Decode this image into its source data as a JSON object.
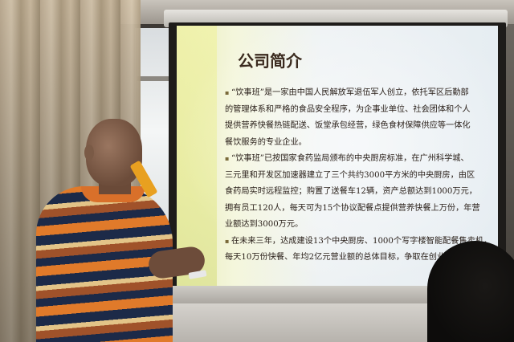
{
  "slide": {
    "title": "公司简介",
    "paragraphs": [
      {
        "lines": [
          "“饮事班”是一家由中国人民解放军退伍军人创立，依托军区后勤部",
          "的管理体系和严格的食品安全程序，为企事业单位、社会团体和个人",
          "提供营养快餐热链配送、饭堂承包经营，绿色食材保障供应等一体化",
          "餐饮服务的专业企业。"
        ]
      },
      {
        "lines": [
          "“饮事班”已按国家食药监局颁布的中央厨房标准，在广州科学城、",
          "三元里和开发区加速器建立了三个共约3000平方米的中央厨房，由区",
          "食药局实时远程监控；购置了送餐车12辆，资产总额达到1000万元，",
          "拥有员工120人，每天可为15个协议配餐点提供营养快餐上万份，年营",
          "业额达到3000万元。"
        ]
      },
      {
        "lines": [
          "在未来三年，达成建设13个中央厨房、1000个写字楼智能配餐售卖机，",
          "每天10万份快餐、年均2亿元营业额的总体目标，争取在创业板IPO。"
        ]
      }
    ],
    "bullet_symbol": "▪"
  }
}
